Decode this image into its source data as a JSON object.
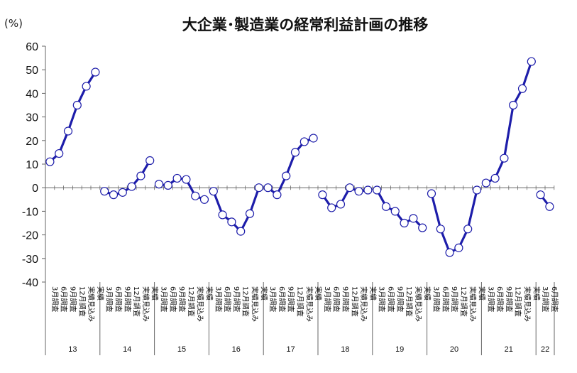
{
  "title": "大企業･製造業の経常利益計画の推移",
  "unit_label": "(%)",
  "colors": {
    "line": "#1d1daa",
    "marker_fill": "#ffffff",
    "axis": "#666666"
  },
  "chart_data": {
    "type": "line",
    "title": "大企業･製造業の経常利益計画の推移",
    "ylabel": "(%)",
    "ylim": [
      -40,
      60
    ],
    "yticks": [
      60,
      50,
      40,
      30,
      20,
      10,
      0,
      -10,
      -20,
      -30,
      -40
    ],
    "grid": false,
    "legend": "none",
    "survey_labels": [
      "3月調査",
      "6月調査",
      "9月調査",
      "12月調査",
      "実績見込み",
      "実績"
    ],
    "groups": [
      {
        "year": "13",
        "labels": [
          "3月調査",
          "6月調査",
          "9月調査",
          "12月調査",
          "実績見込み",
          "実績"
        ],
        "values": [
          11,
          14.5,
          24,
          35,
          43,
          49
        ]
      },
      {
        "year": "14",
        "labels": [
          "3月調査",
          "6月調査",
          "9月調査",
          "12月調査",
          "実績見込み",
          "実績"
        ],
        "values": [
          -1.5,
          -3,
          -2,
          0.5,
          5,
          11.5
        ]
      },
      {
        "year": "15",
        "labels": [
          "3月調査",
          "6月調査",
          "9月調査",
          "12月調査",
          "実績見込み",
          "実績"
        ],
        "values": [
          1.5,
          1,
          4,
          3.5,
          -3.5,
          -5
        ]
      },
      {
        "year": "16",
        "labels": [
          "3月調査",
          "6月調査",
          "9月調査",
          "12月調査",
          "実績見込み",
          "実績"
        ],
        "values": [
          -1.5,
          -11.5,
          -14.5,
          -18.5,
          -11,
          0
        ]
      },
      {
        "year": "17",
        "labels": [
          "3月調査",
          "6月調査",
          "9月調査",
          "12月調査",
          "実績見込み",
          "実績"
        ],
        "values": [
          0,
          -3,
          5,
          15,
          19.5,
          21
        ]
      },
      {
        "year": "18",
        "labels": [
          "3月調査",
          "6月調査",
          "9月調査",
          "12月調査",
          "実績見込み",
          "実績"
        ],
        "values": [
          -3,
          -8.5,
          -7,
          0,
          -1.5,
          -1
        ]
      },
      {
        "year": "19",
        "labels": [
          "3月調査",
          "6月調査",
          "9月調査",
          "12月調査",
          "実績見込み",
          "実績"
        ],
        "values": [
          -1,
          -8,
          -10,
          -15,
          -13,
          -17
        ]
      },
      {
        "year": "20",
        "labels": [
          "3月調査",
          "6月調査",
          "9月調査",
          "12月調査",
          "実績見込み",
          "実績"
        ],
        "values": [
          -2.5,
          -17.5,
          -27.5,
          -25.5,
          -17.5,
          -1
        ]
      },
      {
        "year": "21",
        "labels": [
          "3月調査",
          "6月調査",
          "9月調査",
          "12月調査",
          "実績見込み",
          "実績"
        ],
        "values": [
          2,
          4,
          12.5,
          35,
          42,
          53.5
        ]
      },
      {
        "year": "22",
        "labels": [
          "3月調査",
          "6月調査"
        ],
        "values": [
          -3,
          -8
        ]
      }
    ]
  }
}
